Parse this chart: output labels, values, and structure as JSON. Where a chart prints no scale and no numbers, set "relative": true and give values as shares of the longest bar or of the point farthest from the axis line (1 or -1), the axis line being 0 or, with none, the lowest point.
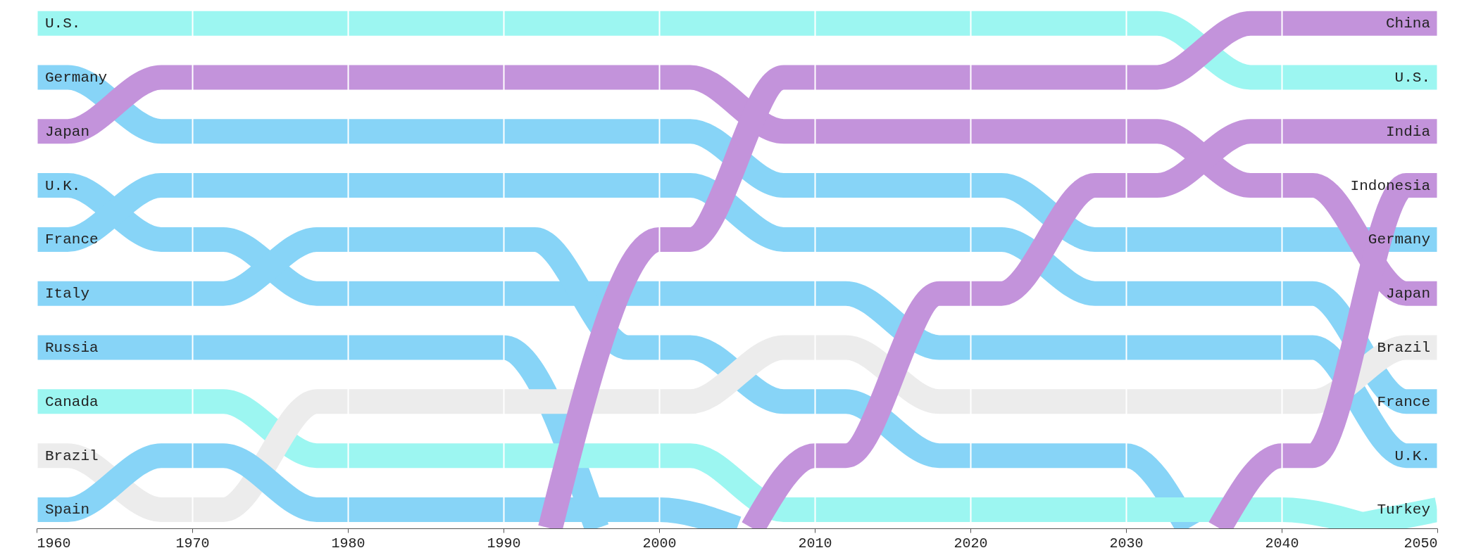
{
  "chart_data": {
    "type": "line",
    "relative": true,
    "xlim": [
      1960,
      2050
    ],
    "xticks": [
      1960,
      1970,
      1980,
      1990,
      2000,
      2010,
      2020,
      2030,
      2040,
      2050
    ],
    "grid": "x",
    "series": [
      {
        "name": "U.S.",
        "color": "#9cf6f1",
        "x": [
          1960,
          1970,
          1980,
          1990,
          2000,
          2010,
          2020,
          2030,
          2032,
          2038,
          2040,
          2050
        ],
        "values": [
          1,
          1,
          1,
          1,
          1,
          1,
          1,
          1,
          1,
          0.893,
          0.893,
          0.893
        ]
      },
      {
        "name": "Germany",
        "color": "#87d4f7",
        "x": [
          1960,
          1962,
          1968,
          1970,
          1980,
          1990,
          2000,
          2002,
          2008,
          2010,
          2020,
          2022,
          2028,
          2030,
          2040,
          2050
        ],
        "values": [
          0.893,
          0.893,
          0.786,
          0.786,
          0.786,
          0.786,
          0.786,
          0.786,
          0.679,
          0.679,
          0.679,
          0.679,
          0.572,
          0.572,
          0.572,
          0.572
        ]
      },
      {
        "name": "Japan",
        "color": "#c393db",
        "x": [
          1960,
          1962,
          1968,
          1970,
          1980,
          1990,
          2000,
          2002,
          2008,
          2010,
          2020,
          2030,
          2032,
          2038,
          2040,
          2042,
          2048,
          2050
        ],
        "values": [
          0.786,
          0.786,
          0.893,
          0.893,
          0.893,
          0.893,
          0.893,
          0.893,
          0.786,
          0.786,
          0.786,
          0.786,
          0.786,
          0.679,
          0.679,
          0.679,
          0.465,
          0.465
        ]
      },
      {
        "name": "U.K.",
        "color": "#87d4f7",
        "x": [
          1960,
          1962,
          1968,
          1970,
          1972,
          1978,
          1980,
          1990,
          2000,
          2010,
          2012,
          2018,
          2020,
          2030,
          2040,
          2042,
          2048,
          2050
        ],
        "values": [
          0.679,
          0.679,
          0.572,
          0.572,
          0.572,
          0.465,
          0.465,
          0.465,
          0.465,
          0.465,
          0.465,
          0.358,
          0.358,
          0.358,
          0.358,
          0.358,
          0.144,
          0.144
        ]
      },
      {
        "name": "France",
        "color": "#87d4f7",
        "x": [
          1960,
          1962,
          1968,
          1970,
          1980,
          1990,
          2000,
          2002,
          2008,
          2010,
          2020,
          2022,
          2028,
          2030,
          2040,
          2042,
          2048,
          2050
        ],
        "values": [
          0.572,
          0.572,
          0.679,
          0.679,
          0.679,
          0.679,
          0.679,
          0.679,
          0.572,
          0.572,
          0.572,
          0.572,
          0.465,
          0.465,
          0.465,
          0.465,
          0.251,
          0.251
        ]
      },
      {
        "name": "Italy",
        "color": "#87d4f7",
        "x": [
          1960,
          1970,
          1972,
          1978,
          1980,
          1990,
          1992,
          1998,
          2000,
          2002,
          2008,
          2010,
          2012,
          2018,
          2020,
          2030,
          2034
        ],
        "values": [
          0.465,
          0.465,
          0.465,
          0.572,
          0.572,
          0.572,
          0.572,
          0.358,
          0.358,
          0.358,
          0.251,
          0.251,
          0.251,
          0.144,
          0.144,
          0.144,
          0
        ]
      },
      {
        "name": "Russia",
        "color": "#87d4f7",
        "x": [
          1960,
          1970,
          1980,
          1990,
          1996
        ],
        "values": [
          0.358,
          0.358,
          0.358,
          0.358,
          0
        ]
      },
      {
        "name": "Canada",
        "color": "#9cf6f1",
        "x": [
          1960,
          1970,
          1972,
          1978,
          1980,
          1990,
          2000,
          2002,
          2008,
          2010,
          2020,
          2030,
          2040,
          2046
        ],
        "values": [
          0.251,
          0.251,
          0.251,
          0.144,
          0.144,
          0.144,
          0.144,
          0.144,
          0.037,
          0.037,
          0.037,
          0.037,
          0.037,
          0
        ]
      },
      {
        "name": "Brazil",
        "color": "#ececec",
        "x": [
          1960,
          1962,
          1968,
          1970,
          1972,
          1978,
          1980,
          1990,
          2000,
          2002,
          2008,
          2010,
          2012,
          2018,
          2020,
          2030,
          2040,
          2042,
          2048,
          2050
        ],
        "values": [
          0.144,
          0.144,
          0.037,
          0.037,
          0.037,
          0.251,
          0.251,
          0.251,
          0.251,
          0.251,
          0.358,
          0.358,
          0.358,
          0.251,
          0.251,
          0.251,
          0.251,
          0.251,
          0.358,
          0.358
        ]
      },
      {
        "name": "Spain",
        "color": "#87d4f7",
        "x": [
          1960,
          1962,
          1968,
          1970,
          1972,
          1978,
          1980,
          1990,
          2000,
          2005
        ],
        "values": [
          0.037,
          0.037,
          0.144,
          0.144,
          0.144,
          0.037,
          0.037,
          0.037,
          0.037,
          0
        ]
      },
      {
        "name": "China",
        "color": "#c393db",
        "x": [
          1993,
          2000,
          2002,
          2008,
          2010,
          2020,
          2030,
          2032,
          2038,
          2040,
          2050
        ],
        "values": [
          0,
          0.572,
          0.572,
          0.893,
          0.893,
          0.893,
          0.893,
          0.893,
          1,
          1,
          1
        ]
      },
      {
        "name": "India",
        "color": "#c393db",
        "x": [
          2006,
          2010,
          2012,
          2018,
          2020,
          2022,
          2028,
          2030,
          2032,
          2038,
          2040,
          2050
        ],
        "values": [
          0,
          0.144,
          0.144,
          0.465,
          0.465,
          0.465,
          0.679,
          0.679,
          0.679,
          0.786,
          0.786,
          0.786
        ]
      },
      {
        "name": "Indonesia",
        "color": "#c393db",
        "x": [
          2036,
          2040,
          2042,
          2048,
          2050
        ],
        "values": [
          0,
          0.144,
          0.144,
          0.679,
          0.679
        ]
      },
      {
        "name": "Turkey",
        "color": "#9cf6f1",
        "x": [
          2044,
          2050
        ],
        "values": [
          0,
          0.037
        ]
      }
    ]
  }
}
